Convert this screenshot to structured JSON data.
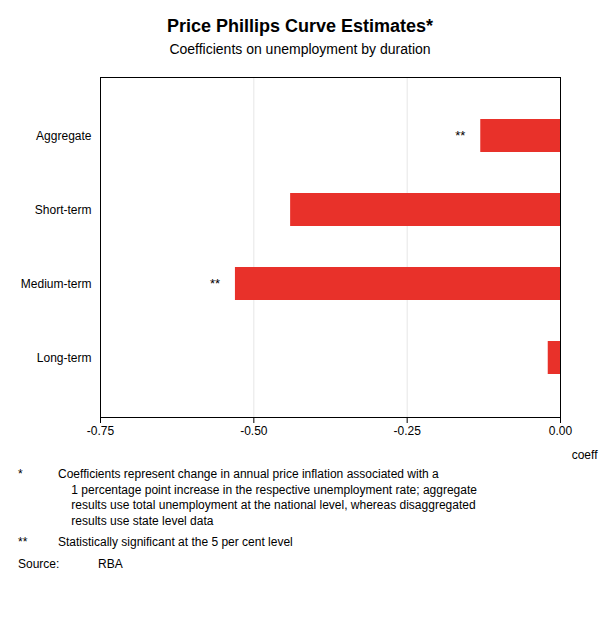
{
  "chart_data": {
    "type": "bar",
    "orientation": "horizontal",
    "title": "Price Phillips Curve Estimates*",
    "subtitle": "Coefficients on unemployment by duration",
    "xlabel": "coeff",
    "categories": [
      "Long-term",
      "Medium-term",
      "Short-term",
      "Aggregate"
    ],
    "values": [
      -0.02,
      -0.53,
      -0.44,
      -0.13
    ],
    "color": "#e8312a",
    "xlim": [
      -0.75,
      0.0
    ],
    "xticks": [
      -0.75,
      {
        "value": -0.5,
        "label": "-0.50"
      },
      -0.25,
      {
        "value": 0,
        "label": "0.00"
      }
    ],
    "grid": true,
    "annotations": [
      {
        "category": "Aggregate",
        "text": "**",
        "x": -0.155
      },
      {
        "category": "Medium-term",
        "text": "**",
        "x": -0.555
      }
    ],
    "footnotes": [
      {
        "symbol": "*",
        "text": "Coefficients represent change in annual price inflation associated with a\n    1 percentage point increase in the respective unemployment rate; aggregate\n    results use total unemployment at the national level, whereas disaggregated\n    results use state level data"
      },
      {
        "symbol": "**",
        "text": "Statistically significant at the 5 per cent level"
      }
    ],
    "source_label": "Source:",
    "source": "RBA"
  }
}
